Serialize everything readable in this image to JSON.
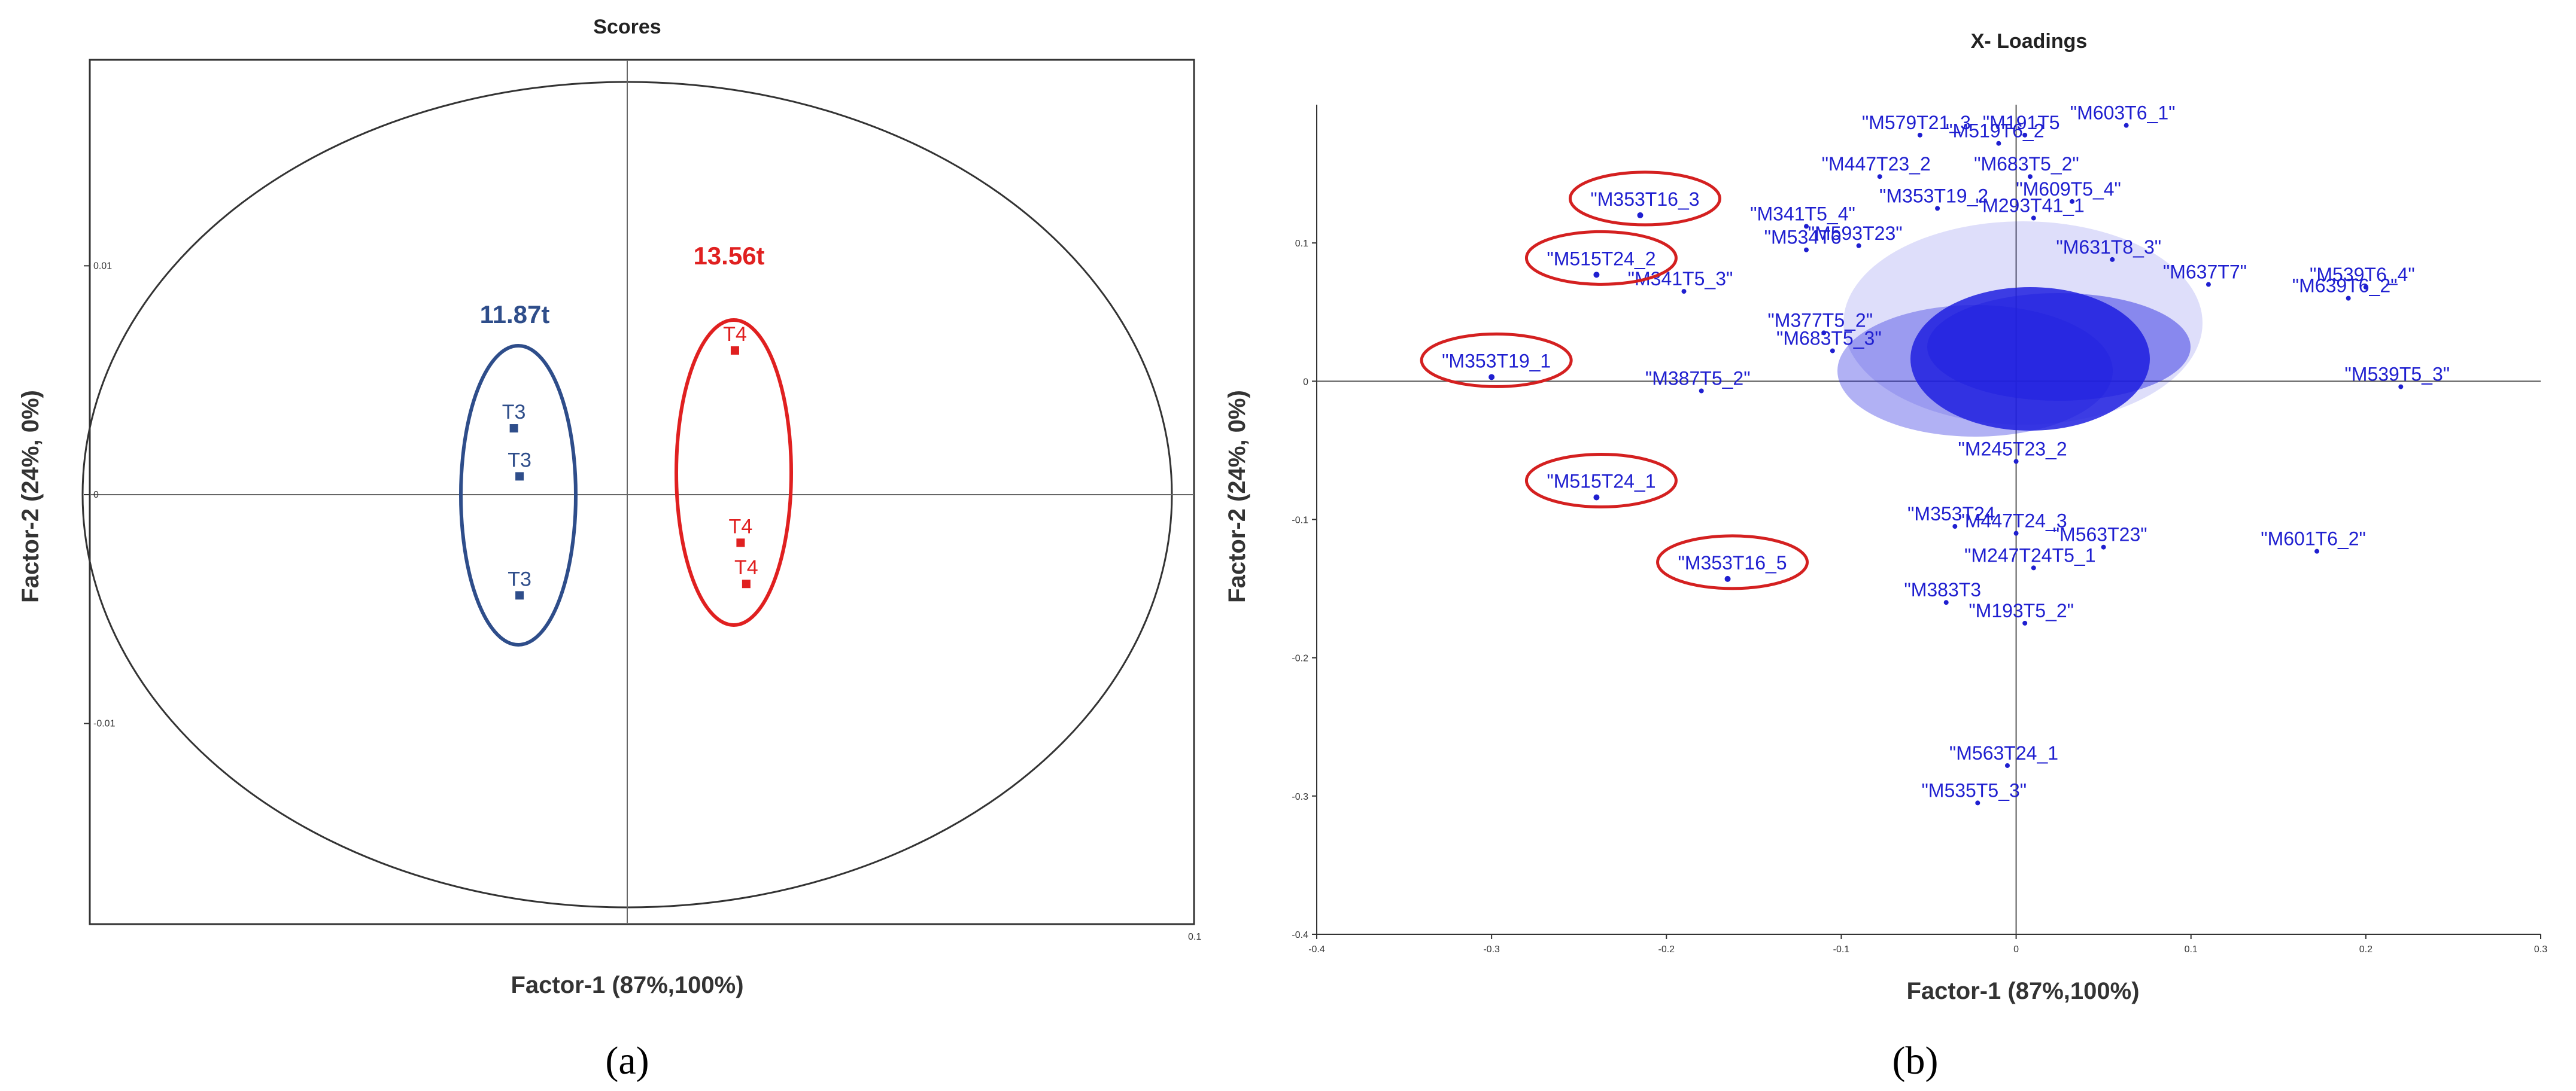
{
  "colors": {
    "points": "#1f1fd0",
    "group_t3": "#2e4d8a",
    "group_t4": "#e02020",
    "highlight": "#d42020",
    "axis": "#333333"
  },
  "figure": {
    "panel_a_label": "(a)",
    "panel_b_label": "(b)"
  },
  "chart_data": [
    {
      "type": "scatter",
      "title": "Scores",
      "xlabel": "Factor-1 (87%,100%)",
      "ylabel": "Factor-2 (24%, 0%)",
      "xlim": [
        -0.1,
        0.1
      ],
      "ylim": [
        -0.019,
        0.019
      ],
      "x_ticks": [
        {
          "value": 0.1,
          "label": "0.1"
        }
      ],
      "y_ticks": [
        {
          "value": 0.01,
          "label": "0.01"
        },
        {
          "value": 0,
          "label": "0"
        },
        {
          "value": -0.01,
          "label": "-0.01"
        }
      ],
      "grid": false,
      "reference_lines": "x=0 and y=0",
      "points": [
        {
          "label": "T3",
          "x": -0.02,
          "y": 0.0029,
          "group": "11.87t"
        },
        {
          "label": "T3",
          "x": -0.019,
          "y": 0.0008,
          "group": "11.87t"
        },
        {
          "label": "T3",
          "x": -0.019,
          "y": -0.0044,
          "group": "11.87t"
        },
        {
          "label": "T4",
          "x": 0.019,
          "y": 0.0063,
          "group": "13.56t"
        },
        {
          "label": "T4",
          "x": 0.02,
          "y": -0.0021,
          "group": "13.56t"
        },
        {
          "label": "T4",
          "x": 0.021,
          "y": -0.0039,
          "group": "13.56t"
        }
      ],
      "groups": [
        {
          "name": "11.87t",
          "color": "#2e4d8a"
        },
        {
          "name": "13.56t",
          "color": "#e02020"
        }
      ]
    },
    {
      "type": "scatter",
      "title": "X- Loadings",
      "xlabel": "Factor-1 (87%,100%)",
      "ylabel": "Factor-2 (24%, 0%)",
      "xlim": [
        -0.4,
        0.3
      ],
      "ylim": [
        -0.4,
        0.2
      ],
      "x_ticks": [
        {
          "value": -0.4,
          "label": "-0.4"
        },
        {
          "value": -0.3,
          "label": "-0.3"
        },
        {
          "value": -0.2,
          "label": "-0.2"
        },
        {
          "value": -0.1,
          "label": "-0.1"
        },
        {
          "value": 0,
          "label": "0"
        },
        {
          "value": 0.1,
          "label": "0.1"
        },
        {
          "value": 0.2,
          "label": "0.2"
        },
        {
          "value": 0.3,
          "label": "0.3"
        }
      ],
      "y_ticks": [
        {
          "value": 0.1,
          "label": "0.1"
        },
        {
          "value": 0,
          "label": "0"
        },
        {
          "value": -0.1,
          "label": "-0.1"
        },
        {
          "value": -0.2,
          "label": "-0.2"
        },
        {
          "value": -0.3,
          "label": "-0.3"
        },
        {
          "value": -0.4,
          "label": "-0.4"
        }
      ],
      "grid": false,
      "reference_lines": "x=0 and y=0",
      "highlighted": [
        {
          "label": "\"M353T16_3",
          "x": -0.215,
          "y": 0.12
        },
        {
          "label": "\"M515T24_2",
          "x": -0.24,
          "y": 0.077
        },
        {
          "label": "\"M353T19_1",
          "x": -0.3,
          "y": 0.003
        },
        {
          "label": "\"M515T24_1",
          "x": -0.24,
          "y": -0.084
        },
        {
          "label": "\"M353T16_5",
          "x": -0.165,
          "y": -0.143
        }
      ],
      "labeled_points": [
        {
          "label": "\"M579T21_3",
          "x": -0.055,
          "y": 0.178
        },
        {
          "label": "\"M519T6_2",
          "x": -0.01,
          "y": 0.172
        },
        {
          "label": "\"M191T5",
          "x": 0.005,
          "y": 0.178
        },
        {
          "label": "\"M603T6_1\"",
          "x": 0.063,
          "y": 0.185
        },
        {
          "label": "\"M447T23_2",
          "x": -0.078,
          "y": 0.148
        },
        {
          "label": "\"M683T5_2\"",
          "x": 0.008,
          "y": 0.148
        },
        {
          "label": "\"M609T5_4\"",
          "x": 0.032,
          "y": 0.13
        },
        {
          "label": "\"M353T19_2",
          "x": -0.045,
          "y": 0.125
        },
        {
          "label": "\"M341T5_4\"",
          "x": -0.12,
          "y": 0.112
        },
        {
          "label": "\"M293T41_1",
          "x": 0.01,
          "y": 0.118
        },
        {
          "label": "\"M534T6",
          "x": -0.12,
          "y": 0.095
        },
        {
          "label": "\"M593T23\"",
          "x": -0.09,
          "y": 0.098
        },
        {
          "label": "\"M341T5_3\"",
          "x": -0.19,
          "y": 0.065
        },
        {
          "label": "\"M631T8_3\"",
          "x": 0.055,
          "y": 0.088
        },
        {
          "label": "\"M637T7\"",
          "x": 0.11,
          "y": 0.07
        },
        {
          "label": "\"M539T6_4\"",
          "x": 0.2,
          "y": 0.068
        },
        {
          "label": "\"M639T6_2\"",
          "x": 0.19,
          "y": 0.06
        },
        {
          "label": "\"M377T5_2\"",
          "x": -0.11,
          "y": 0.035
        },
        {
          "label": "\"M683T5_3\"",
          "x": -0.105,
          "y": 0.022
        },
        {
          "label": "\"M387T5_2\"",
          "x": -0.18,
          "y": -0.007
        },
        {
          "label": "\"M539T5_3\"",
          "x": 0.22,
          "y": -0.004
        },
        {
          "label": "\"M245T23_2",
          "x": 0.0,
          "y": -0.058
        },
        {
          "label": "\"M353T24",
          "x": -0.035,
          "y": -0.105
        },
        {
          "label": "\"M447T24_3",
          "x": 0.0,
          "y": -0.11
        },
        {
          "label": "\"M563T23\"",
          "x": 0.05,
          "y": -0.12
        },
        {
          "label": "\"M247T24T5_1",
          "x": 0.01,
          "y": -0.135
        },
        {
          "label": "\"M601T6_2\"",
          "x": 0.172,
          "y": -0.123
        },
        {
          "label": "\"M383T3",
          "x": -0.04,
          "y": -0.16
        },
        {
          "label": "\"M193T5_2\"",
          "x": 0.005,
          "y": -0.175
        },
        {
          "label": "\"M563T24_1",
          "x": -0.005,
          "y": -0.278
        },
        {
          "label": "\"M535T5_3\"",
          "x": -0.022,
          "y": -0.305
        }
      ]
    }
  ]
}
